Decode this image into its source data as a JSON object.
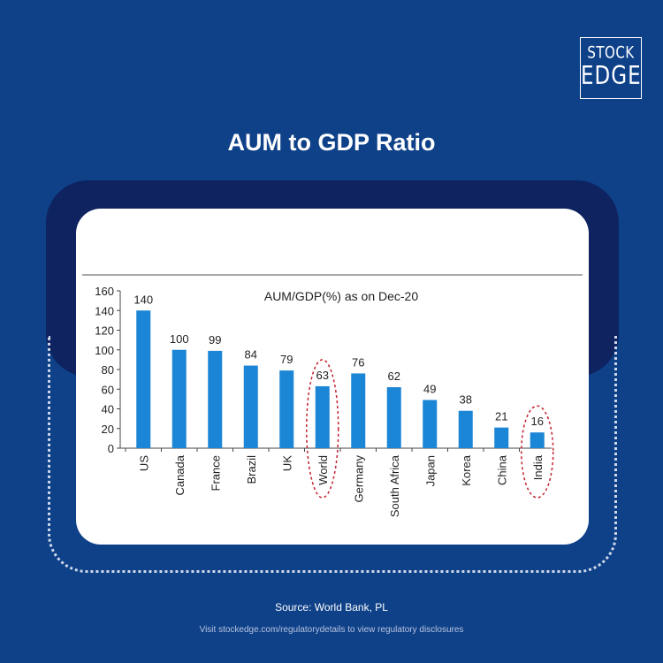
{
  "brand": {
    "line1": "STOCK",
    "line2": "EDGE"
  },
  "page_title": "AUM to GDP Ratio",
  "source": "Source: World Bank, PL",
  "disclaimer": "Visit stockedge.com/regulatorydetails to view regulatory disclosures",
  "colors": {
    "background": "#0f4189",
    "band": "#0e2360",
    "bar": "#1b85d6",
    "highlight": "#c41e2a"
  },
  "chart_data": {
    "type": "bar",
    "title": "AUM/GDP(%) as on Dec-20",
    "xlabel": "",
    "ylabel": "",
    "categories": [
      "US",
      "Canada",
      "France",
      "Brazil",
      "UK",
      "World",
      "Germany",
      "South Africa",
      "Japan",
      "Korea",
      "China",
      "India"
    ],
    "values": [
      140,
      100,
      99,
      84,
      79,
      63,
      76,
      62,
      49,
      38,
      21,
      16
    ],
    "ylim": [
      0,
      160
    ],
    "yticks": [
      0,
      20,
      40,
      60,
      80,
      100,
      120,
      140,
      160
    ],
    "highlighted": [
      "World",
      "India"
    ],
    "grid": false,
    "legend": "none"
  }
}
